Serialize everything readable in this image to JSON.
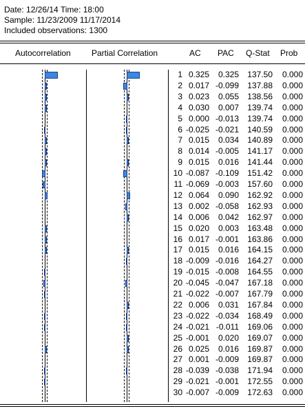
{
  "info": {
    "date_line": "Date: 12/26/14   Time: 18:00",
    "sample_line": "Sample: 11/23/2009 11/17/2014",
    "obs_line": "Included observations: 1300"
  },
  "headers": {
    "autocorrelation": "Autocorrelation",
    "partial_correlation": "Partial Correlation",
    "ac": "AC",
    "pac": "PAC",
    "qstat": "Q-Stat",
    "prob": "Prob"
  },
  "colors": {
    "bar_fill": "#3d87e0",
    "bar_border": "#1a3e8c"
  },
  "rows": [
    {
      "lag": "1",
      "ac": "0.325",
      "pac": "0.325",
      "q": "137.50",
      "p": "0.000"
    },
    {
      "lag": "2",
      "ac": "0.017",
      "pac": "-0.099",
      "q": "137.88",
      "p": "0.000"
    },
    {
      "lag": "3",
      "ac": "0.023",
      "pac": "0.055",
      "q": "138.56",
      "p": "0.000"
    },
    {
      "lag": "4",
      "ac": "0.030",
      "pac": "0.007",
      "q": "139.74",
      "p": "0.000"
    },
    {
      "lag": "5",
      "ac": "0.000",
      "pac": "-0.013",
      "q": "139.74",
      "p": "0.000"
    },
    {
      "lag": "6",
      "ac": "-0.025",
      "pac": "-0.021",
      "q": "140.59",
      "p": "0.000"
    },
    {
      "lag": "7",
      "ac": "0.015",
      "pac": "0.034",
      "q": "140.89",
      "p": "0.000"
    },
    {
      "lag": "8",
      "ac": "0.014",
      "pac": "-0.005",
      "q": "141.17",
      "p": "0.000"
    },
    {
      "lag": "9",
      "ac": "0.015",
      "pac": "0.016",
      "q": "141.44",
      "p": "0.000"
    },
    {
      "lag": "10",
      "ac": "-0.087",
      "pac": "-0.109",
      "q": "151.42",
      "p": "0.000"
    },
    {
      "lag": "11",
      "ac": "-0.069",
      "pac": "-0.003",
      "q": "157.60",
      "p": "0.000"
    },
    {
      "lag": "12",
      "ac": "0.064",
      "pac": "0.090",
      "q": "162.92",
      "p": "0.000"
    },
    {
      "lag": "13",
      "ac": "0.002",
      "pac": "-0.058",
      "q": "162.93",
      "p": "0.000"
    },
    {
      "lag": "14",
      "ac": "0.006",
      "pac": "0.042",
      "q": "162.97",
      "p": "0.000"
    },
    {
      "lag": "15",
      "ac": "0.020",
      "pac": "0.003",
      "q": "163.48",
      "p": "0.000"
    },
    {
      "lag": "16",
      "ac": "0.017",
      "pac": "-0.001",
      "q": "163.86",
      "p": "0.000"
    },
    {
      "lag": "17",
      "ac": "0.015",
      "pac": "0.016",
      "q": "164.15",
      "p": "0.000"
    },
    {
      "lag": "18",
      "ac": "-0.009",
      "pac": "-0.016",
      "q": "164.27",
      "p": "0.000"
    },
    {
      "lag": "19",
      "ac": "-0.015",
      "pac": "-0.008",
      "q": "164.55",
      "p": "0.000"
    },
    {
      "lag": "20",
      "ac": "-0.045",
      "pac": "-0.047",
      "q": "167.18",
      "p": "0.000"
    },
    {
      "lag": "21",
      "ac": "-0.022",
      "pac": "-0.007",
      "q": "167.79",
      "p": "0.000"
    },
    {
      "lag": "22",
      "ac": "0.006",
      "pac": "0.031",
      "q": "167.84",
      "p": "0.000"
    },
    {
      "lag": "23",
      "ac": "-0.022",
      "pac": "-0.034",
      "q": "168.49",
      "p": "0.000"
    },
    {
      "lag": "24",
      "ac": "-0.021",
      "pac": "-0.011",
      "q": "169.06",
      "p": "0.000"
    },
    {
      "lag": "25",
      "ac": "-0.001",
      "pac": "0.020",
      "q": "169.07",
      "p": "0.000"
    },
    {
      "lag": "26",
      "ac": "0.025",
      "pac": "0.016",
      "q": "169.87",
      "p": "0.000"
    },
    {
      "lag": "27",
      "ac": "0.001",
      "pac": "-0.009",
      "q": "169.87",
      "p": "0.000"
    },
    {
      "lag": "28",
      "ac": "-0.039",
      "pac": "-0.038",
      "q": "171.94",
      "p": "0.000"
    },
    {
      "lag": "29",
      "ac": "-0.021",
      "pac": "-0.001",
      "q": "172.55",
      "p": "0.000"
    },
    {
      "lag": "30",
      "ac": "-0.007",
      "pac": "-0.009",
      "q": "172.63",
      "p": "0.000"
    }
  ]
}
